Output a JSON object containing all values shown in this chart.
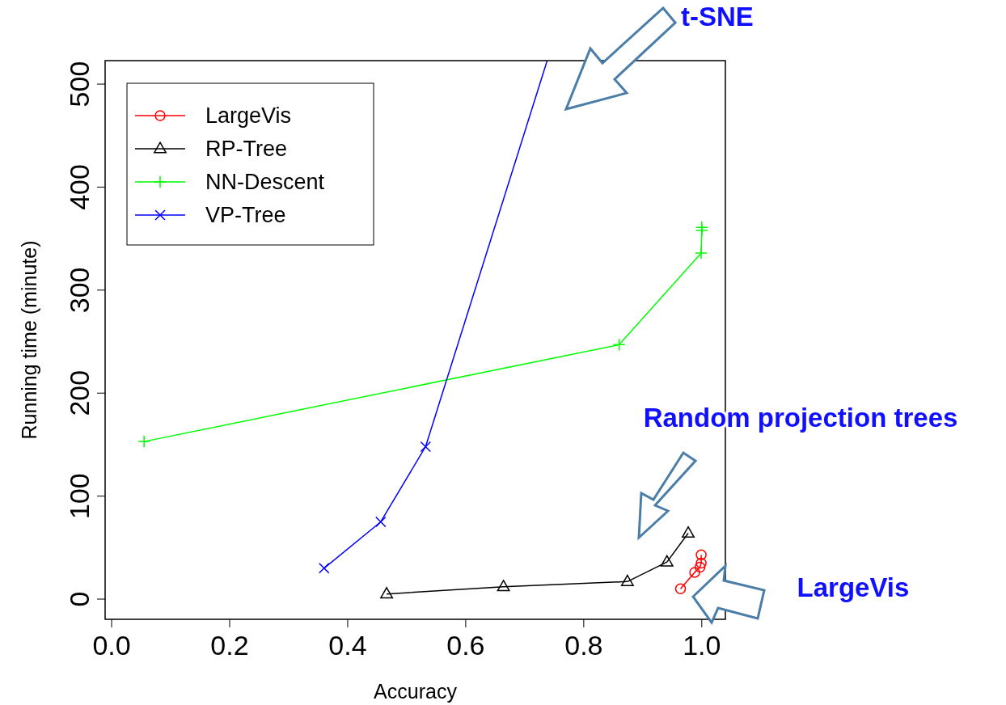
{
  "chart_data": {
    "type": "line",
    "xlabel": "Accuracy",
    "ylabel": "Running time (minute)",
    "xlim": [
      -0.011,
      1.04
    ],
    "ylim": [
      -19.6,
      522.8
    ],
    "xticks": [
      {
        "value": 0,
        "label": "0.0"
      },
      {
        "value": 0.2,
        "label": "0.2"
      },
      {
        "value": 0.4,
        "label": "0.4"
      },
      {
        "value": 0.6,
        "label": "0.6"
      },
      {
        "value": 0.8,
        "label": "0.8"
      },
      {
        "value": 1,
        "label": "1.0"
      }
    ],
    "yticks": [
      0,
      100,
      200,
      300,
      400,
      500
    ],
    "grid": false,
    "legend": "top left",
    "line_style": "solid",
    "series": [
      {
        "name": "LargeVis",
        "color": "#ff0000",
        "marker": "circle",
        "x": [
          0.964,
          0.988,
          0.997,
          0.999,
          0.999
        ],
        "values": [
          10,
          26,
          31,
          35,
          43
        ]
      },
      {
        "name": "RP-Tree",
        "color": "#000000",
        "marker": "triangle",
        "x": [
          0.466,
          0.664,
          0.874,
          0.941,
          0.977
        ],
        "values": [
          5,
          12,
          17,
          36,
          64
        ]
      },
      {
        "name": "NN-Descent",
        "color": "#00ff00",
        "marker": "plus",
        "x": [
          0.055,
          0.86,
          0.999,
          1.0,
          1.0
        ],
        "values": [
          153,
          247,
          336,
          358,
          361
        ]
      },
      {
        "name": "VP-Tree",
        "color": "#0000ff",
        "marker": "cross",
        "x": [
          0.36,
          0.456,
          0.532
        ],
        "values": [
          30,
          75,
          148
        ]
      },
      {
        "color": "#0000ff",
        "marker": "none",
        "x": [
          0.532,
          0.738
        ],
        "values": [
          148,
          522.8
        ]
      }
    ],
    "annotations": [
      "t-SNE",
      "Random projection trees",
      "LargeVis"
    ]
  }
}
